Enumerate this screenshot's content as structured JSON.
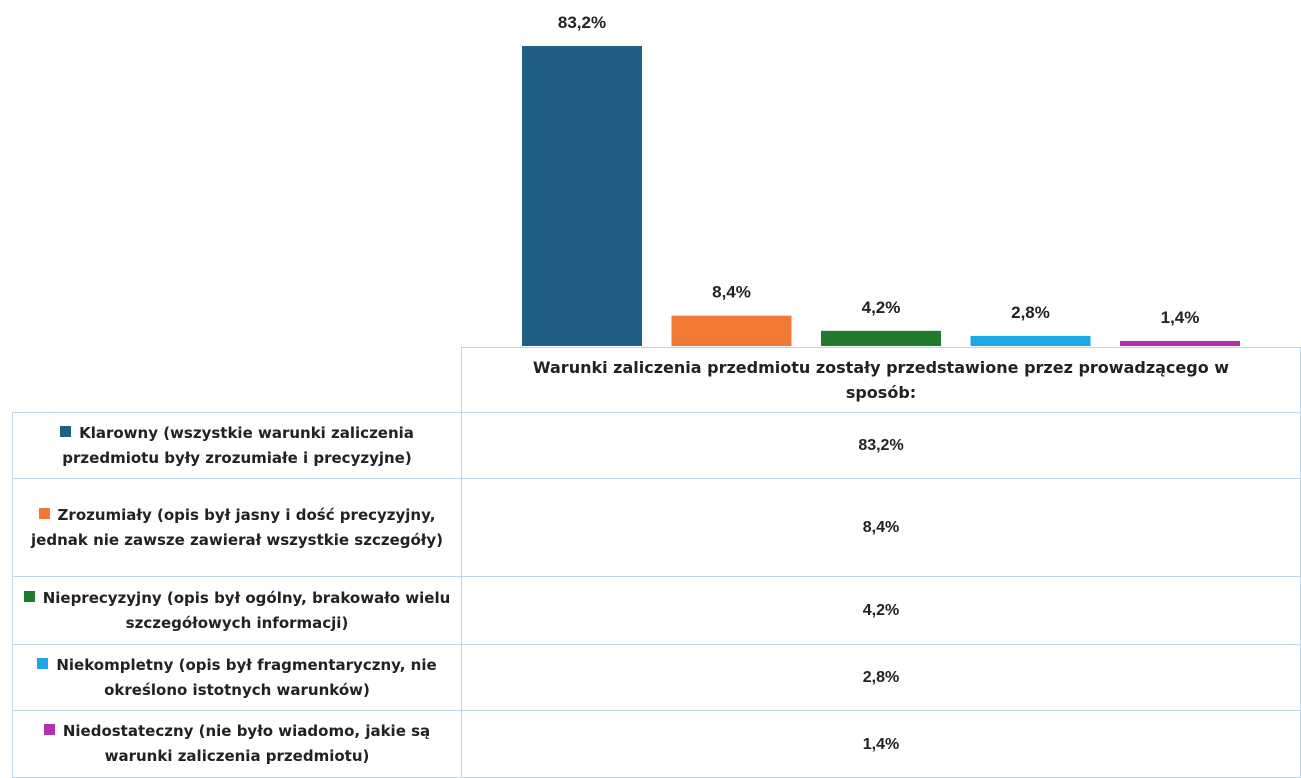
{
  "chart_data": {
    "type": "bar",
    "categories": [
      "Warunki zaliczenia przedmiotu zostały przedstawione przez prowadzącego w sposób:"
    ],
    "series": [
      {
        "name": "Klarowny (wszystkie warunki zaliczenia przedmiotu były zrozumiałe i precyzyjne)",
        "color": "#1f5f84",
        "values": [
          83.2
        ],
        "value_labels": [
          "83,2%"
        ]
      },
      {
        "name": "Zrozumiały (opis był jasny i dość precyzyjny, jednak nie zawsze zawierał wszystkie szczegóły)",
        "color": "#f07a34",
        "values": [
          8.4
        ],
        "value_labels": [
          "8,4%"
        ]
      },
      {
        "name": "Nieprecyzyjny (opis był ogólny, brakowało wielu szczegółowych informacji)",
        "color": "#217a2c",
        "values": [
          4.2
        ],
        "value_labels": [
          "4,2%"
        ]
      },
      {
        "name": "Niekompletny (opis był fragmentaryczny, nie określono istotnych warunków)",
        "color": "#1ea7e8",
        "values": [
          2.8
        ],
        "value_labels": [
          "2,8%"
        ]
      },
      {
        "name": "Niedostateczny (nie było wiadomo, jakie są warunki zaliczenia przedmiotu)",
        "color": "#b22fae",
        "values": [
          1.4
        ],
        "value_labels": [
          "1,4%"
        ]
      }
    ]
  }
}
